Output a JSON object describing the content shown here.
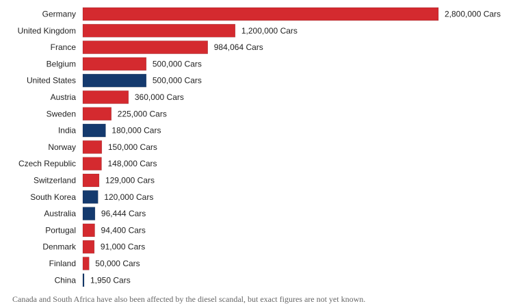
{
  "chart_data": {
    "type": "bar",
    "orientation": "horizontal",
    "categories": [
      "Germany",
      "United Kingdom",
      "France",
      "Belgium",
      "United States",
      "Austria",
      "Sweden",
      "India",
      "Norway",
      "Czech Republic",
      "Switzerland",
      "South Korea",
      "Australia",
      "Portugal",
      "Denmark",
      "Finland",
      "China"
    ],
    "values": [
      2800000,
      1200000,
      984064,
      500000,
      500000,
      360000,
      225000,
      180000,
      150000,
      148000,
      129000,
      120000,
      96444,
      94400,
      91000,
      50000,
      1950
    ],
    "value_labels": [
      "2,800,000 Cars",
      "1,200,000 Cars",
      "984,064 Cars",
      "500,000 Cars",
      "500,000 Cars",
      "360,000 Cars",
      "225,000 Cars",
      "180,000 Cars",
      "150,000 Cars",
      "148,000 Cars",
      "129,000 Cars",
      "120,000 Cars",
      "96,444 Cars",
      "94,400 Cars",
      "91,000 Cars",
      "50,000 Cars",
      "1,950 Cars"
    ],
    "bar_color_groups": [
      "red",
      "red",
      "red",
      "red",
      "blue",
      "red",
      "red",
      "blue",
      "red",
      "red",
      "red",
      "blue",
      "blue",
      "red",
      "red",
      "red",
      "blue"
    ],
    "colors": {
      "red": "#d42a2f",
      "blue": "#143a6e"
    },
    "xlim": [
      0,
      2800000
    ],
    "grid": false,
    "legend": "none"
  },
  "footnote": "Canada and South Africa have also been affected by the diesel scandal, but exact figures are not yet known."
}
